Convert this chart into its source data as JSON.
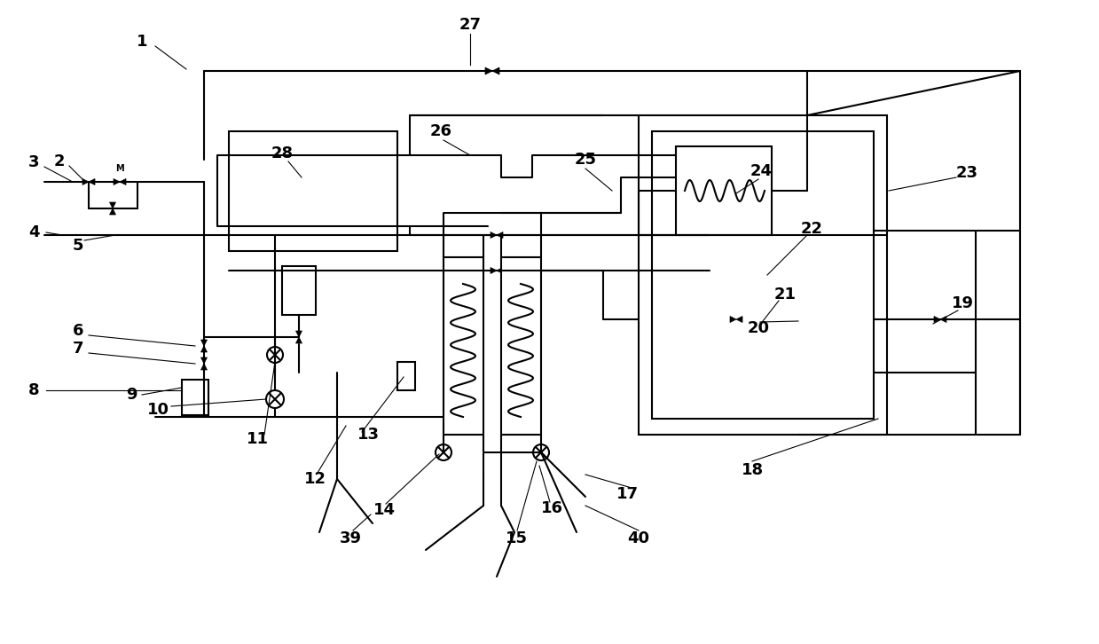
{
  "bg_color": "#ffffff",
  "lc": "#000000",
  "lw": 1.5,
  "thin": 1.0,
  "fs": 13
}
